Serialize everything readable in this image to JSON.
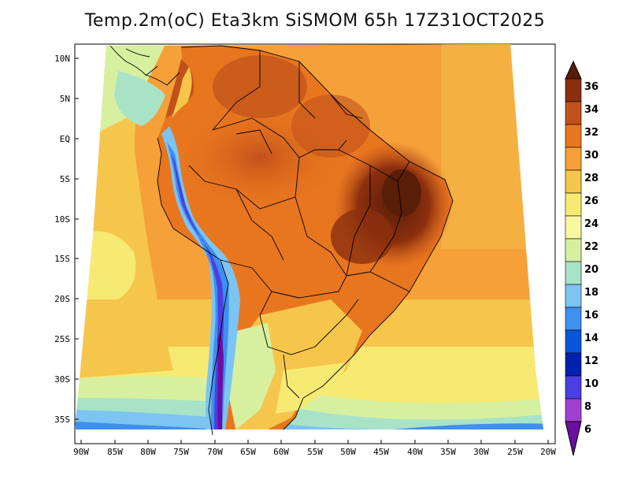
{
  "title": "Temp.2m(oC) Eta3km SiSMOM 65h 17Z31OCT2025",
  "colorbar": {
    "labels": [
      "36",
      "34",
      "32",
      "30",
      "28",
      "26",
      "24",
      "22",
      "20",
      "18",
      "16",
      "14",
      "12",
      "10",
      "8",
      "6"
    ],
    "colors": [
      "#5a1d08",
      "#8b2f0e",
      "#c1511b",
      "#e8761f",
      "#f6a03a",
      "#f5c64b",
      "#f7ea72",
      "#f9f7a0",
      "#d7f0a0",
      "#a8e3c8",
      "#7cc4f2",
      "#3f8ff0",
      "#0a55d8",
      "#0020b0",
      "#4a3fe0",
      "#a040d0",
      "#6a0fa0"
    ]
  },
  "axes": {
    "lat_labels": [
      "10N",
      "5N",
      "EQ",
      "5S",
      "10S",
      "15S",
      "20S",
      "25S",
      "30S",
      "35S"
    ],
    "lon_labels": [
      "90W",
      "85W",
      "80W",
      "75W",
      "70W",
      "65W",
      "60W",
      "55W",
      "50W",
      "45W",
      "40W",
      "35W",
      "30W",
      "25W",
      "20W"
    ]
  }
}
